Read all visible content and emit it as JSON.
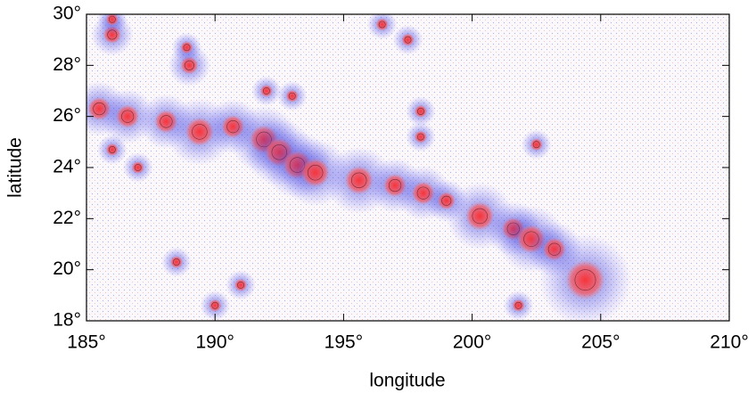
{
  "chart_data": {
    "type": "scatter",
    "x_label": "longitude",
    "y_label": "latitude",
    "xlim": [
      185,
      210
    ],
    "ylim": [
      18,
      30
    ],
    "xticks": [
      {
        "value": 185,
        "label": "185°"
      },
      {
        "value": 190,
        "label": "190°"
      },
      {
        "value": 195,
        "label": "195°"
      },
      {
        "value": 200,
        "label": "200°"
      },
      {
        "value": 205,
        "label": "205°"
      },
      {
        "value": 210,
        "label": "210°"
      }
    ],
    "yticks": [
      {
        "value": 18,
        "label": "18°"
      },
      {
        "value": 20,
        "label": "20°"
      },
      {
        "value": 22,
        "label": "22°"
      },
      {
        "value": 24,
        "label": "24°"
      },
      {
        "value": 26,
        "label": "26°"
      },
      {
        "value": 28,
        "label": "28°"
      },
      {
        "value": 30,
        "label": "30°"
      }
    ],
    "x": [
      185.5,
      186.6,
      188.1,
      189.4,
      190.7,
      191.9,
      192.5,
      193.2,
      193.9,
      195.6,
      197.0,
      198.1,
      199.0,
      200.3,
      201.6,
      202.3,
      203.2,
      204.4,
      186.0,
      186.0,
      189.0,
      188.9,
      186.0,
      187.0,
      192.0,
      193.0,
      198.0,
      198.0,
      196.5,
      197.5,
      202.5,
      190.0,
      191.0,
      188.5,
      201.8
    ],
    "y": [
      26.3,
      26.0,
      25.8,
      25.4,
      25.6,
      25.1,
      24.6,
      24.1,
      23.8,
      23.5,
      23.3,
      23.0,
      22.7,
      22.1,
      21.6,
      21.2,
      20.8,
      19.6,
      29.2,
      29.8,
      28.0,
      28.7,
      24.7,
      24.0,
      27.0,
      26.8,
      26.2,
      25.2,
      29.6,
      29.0,
      24.9,
      18.6,
      19.4,
      20.3,
      18.6
    ],
    "size": [
      3,
      3,
      3,
      4,
      3,
      4,
      4,
      4,
      4,
      4,
      3,
      3,
      2,
      4,
      3,
      4,
      3,
      6,
      2,
      1,
      2,
      1,
      1,
      1,
      1,
      1,
      1,
      1,
      1,
      1,
      1,
      1,
      1,
      1,
      1
    ],
    "colors": {
      "positive": "#e8202a",
      "negative": "#2a2ad0"
    }
  }
}
